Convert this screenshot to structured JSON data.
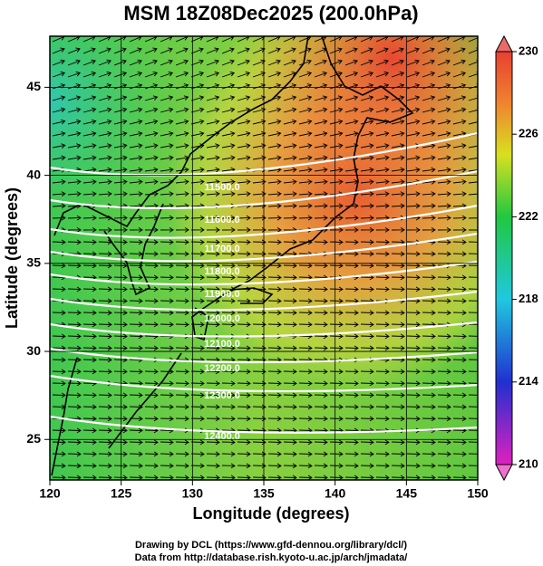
{
  "title": "MSM 18Z08Dec2025 (200.0hPa)",
  "x_label": "Longitude (degrees)",
  "y_label": "Latitude  (degrees)",
  "xlim": [
    120,
    150
  ],
  "xticks": [
    120,
    125,
    130,
    135,
    140,
    145,
    150
  ],
  "ylim": [
    22.7,
    47.9
  ],
  "yticks": [
    25,
    30,
    35,
    40,
    45
  ],
  "colorbar": {
    "lim": [
      210,
      230
    ],
    "ticks": [
      210,
      214,
      218,
      222,
      226,
      230
    ]
  },
  "contour_labels": [
    "11500.0",
    "11600.0",
    "11700.0",
    "11800.0",
    "11900.0",
    "12000.0",
    "12100.0",
    "12200.0",
    "12300.0",
    "12400.0"
  ],
  "footer": [
    "Drawing by DCL (https://www.gfd-dennou.org/library/dcl/)",
    "Data from http://database.rish.kyoto-u.ac.jp/arch/jmadata/"
  ]
}
